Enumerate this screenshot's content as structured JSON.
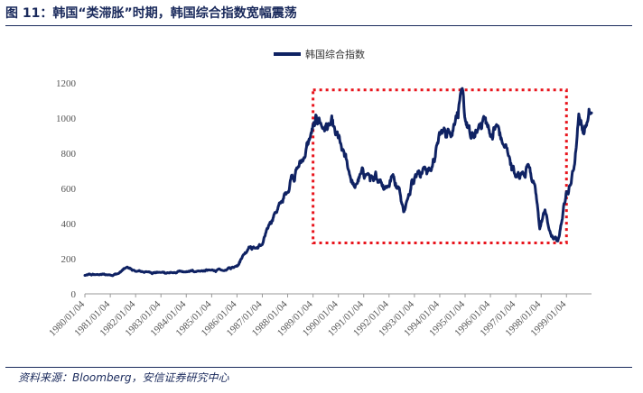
{
  "figure": {
    "title": "图 11：韩国“类滞胀”时期，韩国综合指数宽幅震荡",
    "source": "资料来源：Bloomberg，安信证券研究中心"
  },
  "colors": {
    "line": "#0f2263",
    "box": "#e8141c",
    "axis": "#999999",
    "title": "#1a2a5c"
  },
  "chart_data": {
    "type": "line",
    "title": "",
    "xlabel": "",
    "ylabel": "",
    "legend": {
      "position": "top-center",
      "entries": [
        "韩国综合指数"
      ]
    },
    "grid": false,
    "ylim": [
      0,
      1200
    ],
    "yticks": [
      0,
      200,
      400,
      600,
      800,
      1000,
      1200
    ],
    "xlim": [
      "1980-01-04",
      "1999-12-31"
    ],
    "xticks": [
      "1980/01/04",
      "1981/01/04",
      "1982/01/04",
      "1983/01/04",
      "1984/01/04",
      "1985/01/04",
      "1986/01/04",
      "1987/01/04",
      "1988/01/04",
      "1989/01/04",
      "1990/01/04",
      "1991/01/04",
      "1992/01/04",
      "1993/01/04",
      "1994/01/04",
      "1995/01/04",
      "1996/01/04",
      "1997/01/04",
      "1998/01/04",
      "1999/01/04"
    ],
    "series": [
      {
        "name": "韩国综合指数",
        "points": [
          [
            "1980-01-04",
            105
          ],
          [
            "1980-07-01",
            110
          ],
          [
            "1981-01-04",
            108
          ],
          [
            "1981-05-01",
            115
          ],
          [
            "1981-09-01",
            152
          ],
          [
            "1982-01-04",
            128
          ],
          [
            "1982-07-01",
            125
          ],
          [
            "1983-01-04",
            122
          ],
          [
            "1983-07-01",
            120
          ],
          [
            "1984-01-04",
            125
          ],
          [
            "1984-07-01",
            130
          ],
          [
            "1985-01-04",
            135
          ],
          [
            "1985-07-01",
            132
          ],
          [
            "1986-01-04",
            160
          ],
          [
            "1986-04-01",
            220
          ],
          [
            "1986-07-01",
            270
          ],
          [
            "1986-10-01",
            260
          ],
          [
            "1987-01-04",
            280
          ],
          [
            "1987-04-01",
            380
          ],
          [
            "1987-07-01",
            460
          ],
          [
            "1987-10-01",
            520
          ],
          [
            "1988-01-04",
            580
          ],
          [
            "1988-03-01",
            680
          ],
          [
            "1988-06-01",
            720
          ],
          [
            "1988-09-01",
            780
          ],
          [
            "1988-12-01",
            900
          ],
          [
            "1989-02-01",
            960
          ],
          [
            "1989-04-01",
            1000
          ],
          [
            "1989-06-01",
            940
          ],
          [
            "1989-09-01",
            960
          ],
          [
            "1989-12-01",
            900
          ],
          [
            "1990-03-01",
            810
          ],
          [
            "1990-06-01",
            700
          ],
          [
            "1990-09-01",
            600
          ],
          [
            "1990-12-01",
            690
          ],
          [
            "1991-03-01",
            680
          ],
          [
            "1991-06-01",
            640
          ],
          [
            "1991-09-01",
            650
          ],
          [
            "1991-12-01",
            610
          ],
          [
            "1992-03-01",
            680
          ],
          [
            "1992-06-01",
            600
          ],
          [
            "1992-08-01",
            470
          ],
          [
            "1992-10-01",
            540
          ],
          [
            "1992-12-01",
            660
          ],
          [
            "1993-03-01",
            700
          ],
          [
            "1993-06-01",
            720
          ],
          [
            "1993-09-01",
            700
          ],
          [
            "1993-12-01",
            860
          ],
          [
            "1994-03-01",
            930
          ],
          [
            "1994-06-01",
            920
          ],
          [
            "1994-09-01",
            1020
          ],
          [
            "1994-11-01",
            1140
          ],
          [
            "1995-01-04",
            990
          ],
          [
            "1995-04-01",
            880
          ],
          [
            "1995-07-01",
            920
          ],
          [
            "1995-10-01",
            1010
          ],
          [
            "1996-01-04",
            900
          ],
          [
            "1996-04-01",
            960
          ],
          [
            "1996-07-01",
            850
          ],
          [
            "1996-10-01",
            780
          ],
          [
            "1997-01-04",
            660
          ],
          [
            "1997-04-01",
            690
          ],
          [
            "1997-07-01",
            740
          ],
          [
            "1997-10-01",
            620
          ],
          [
            "1997-12-15",
            370
          ],
          [
            "1998-03-01",
            480
          ],
          [
            "1998-05-01",
            360
          ],
          [
            "1998-07-01",
            310
          ],
          [
            "1998-09-01",
            300
          ],
          [
            "1998-11-01",
            420
          ],
          [
            "1999-01-04",
            590
          ],
          [
            "1999-03-01",
            620
          ],
          [
            "1999-05-01",
            740
          ],
          [
            "1999-07-01",
            1030
          ],
          [
            "1999-09-01",
            920
          ],
          [
            "1999-11-01",
            980
          ],
          [
            "1999-12-31",
            1030
          ]
        ]
      }
    ],
    "annotations": [
      {
        "type": "dotted-box",
        "x_range": [
          "1989-01-04",
          "1999-01-04"
        ],
        "y_range": [
          290,
          1160
        ]
      }
    ]
  }
}
